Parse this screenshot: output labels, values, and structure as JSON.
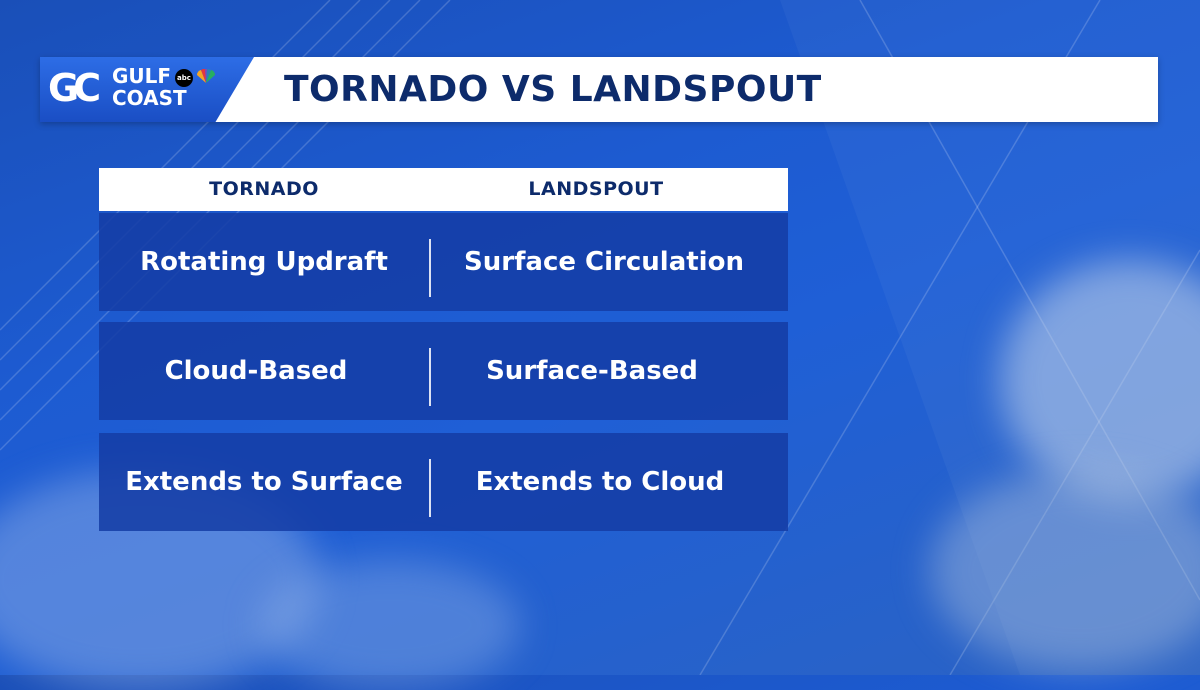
{
  "header": {
    "logo_line1": "GULF",
    "logo_line2": "COAST",
    "logo_monogram": "GC",
    "network_badge": "abc",
    "title": "TORNADO VS LANDSPOUT"
  },
  "table": {
    "columns": [
      "TORNADO",
      "LANDSPOUT"
    ],
    "rows": [
      [
        "Rotating Updraft",
        "Surface Circulation"
      ],
      [
        "Cloud-Based",
        "Surface-Based"
      ],
      [
        "Extends to Surface",
        "Extends to Cloud"
      ]
    ]
  },
  "colors": {
    "background": "#1d5bd1",
    "title_text": "#0d2b6b",
    "row_fill": "#143ca5",
    "logo_block": "#1a4ec4"
  }
}
